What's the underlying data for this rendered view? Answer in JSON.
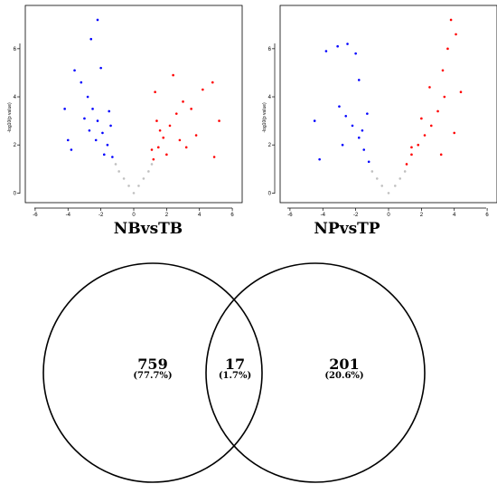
{
  "chart_data": [
    {
      "type": "scatter",
      "title": "NBvsTB",
      "ylabel": "-log10(p value)",
      "xlim": [
        -6.6,
        6.6
      ],
      "ylim": [
        -0.4,
        7.8
      ],
      "xticks": [
        "-6",
        "-4",
        "-2",
        "0",
        "2",
        "4",
        "6"
      ],
      "yticks": [
        "0",
        "2",
        "4",
        "6"
      ],
      "series": [
        {
          "color": "#c0c0c0",
          "points": [
            [
              0.0,
              0.0
            ],
            [
              -0.3,
              0.3
            ],
            [
              0.3,
              0.3
            ],
            [
              -0.6,
              0.6
            ],
            [
              0.6,
              0.6
            ],
            [
              -0.9,
              0.9
            ],
            [
              0.9,
              0.9
            ],
            [
              -1.1,
              1.2
            ],
            [
              1.1,
              1.2
            ]
          ]
        },
        {
          "color": "#0000ff",
          "points": [
            [
              -1.3,
              1.5
            ],
            [
              -1.6,
              2.0
            ],
            [
              -1.9,
              2.5
            ],
            [
              -2.2,
              3.0
            ],
            [
              -2.5,
              3.5
            ],
            [
              -2.8,
              4.0
            ],
            [
              -3.2,
              4.6
            ],
            [
              -3.6,
              5.1
            ],
            [
              -2.0,
              5.2
            ],
            [
              -2.6,
              6.4
            ],
            [
              -2.2,
              7.2
            ],
            [
              -4.0,
              2.2
            ],
            [
              -4.2,
              3.5
            ],
            [
              -3.8,
              1.8
            ],
            [
              -2.3,
              2.2
            ],
            [
              -1.4,
              2.8
            ],
            [
              -1.8,
              1.6
            ],
            [
              -3.0,
              3.1
            ],
            [
              -2.7,
              2.6
            ],
            [
              -1.5,
              3.4
            ]
          ]
        },
        {
          "color": "#ff0000",
          "points": [
            [
              1.2,
              1.4
            ],
            [
              1.5,
              1.9
            ],
            [
              1.8,
              2.3
            ],
            [
              2.2,
              2.8
            ],
            [
              2.6,
              3.3
            ],
            [
              3.0,
              3.8
            ],
            [
              1.3,
              4.2
            ],
            [
              1.6,
              2.6
            ],
            [
              2.0,
              1.6
            ],
            [
              2.8,
              2.2
            ],
            [
              3.5,
              3.5
            ],
            [
              4.2,
              4.3
            ],
            [
              4.8,
              4.6
            ],
            [
              5.2,
              3.0
            ],
            [
              4.9,
              1.5
            ],
            [
              3.8,
              2.4
            ],
            [
              1.4,
              3.0
            ],
            [
              2.4,
              4.9
            ],
            [
              1.1,
              1.8
            ],
            [
              3.2,
              1.9
            ]
          ]
        }
      ]
    },
    {
      "type": "scatter",
      "title": "NPvsTP",
      "ylabel": "-log10(p value)",
      "xlim": [
        -6.6,
        6.6
      ],
      "ylim": [
        -0.4,
        7.8
      ],
      "xticks": [
        "-6",
        "-4",
        "-2",
        "0",
        "2",
        "4",
        "6"
      ],
      "yticks": [
        "0",
        "2",
        "4",
        "6"
      ],
      "series": [
        {
          "color": "#c0c0c0",
          "points": [
            [
              0.0,
              0.0
            ],
            [
              -0.4,
              0.3
            ],
            [
              0.4,
              0.3
            ],
            [
              -0.7,
              0.6
            ],
            [
              0.7,
              0.6
            ],
            [
              -1.0,
              0.9
            ],
            [
              1.0,
              0.9
            ]
          ]
        },
        {
          "color": "#0000ff",
          "points": [
            [
              -1.2,
              1.3
            ],
            [
              -1.5,
              1.8
            ],
            [
              -1.8,
              2.3
            ],
            [
              -2.2,
              2.8
            ],
            [
              -2.6,
              3.2
            ],
            [
              -3.0,
              3.6
            ],
            [
              -2.0,
              5.8
            ],
            [
              -3.1,
              6.1
            ],
            [
              -2.5,
              6.2
            ],
            [
              -3.8,
              5.9
            ],
            [
              -1.8,
              4.7
            ],
            [
              -4.5,
              3.0
            ],
            [
              -4.2,
              1.4
            ],
            [
              -1.3,
              3.3
            ],
            [
              -2.8,
              2.0
            ],
            [
              -1.6,
              2.6
            ]
          ]
        },
        {
          "color": "#ff0000",
          "points": [
            [
              1.1,
              1.2
            ],
            [
              1.4,
              1.6
            ],
            [
              1.8,
              2.0
            ],
            [
              2.2,
              2.4
            ],
            [
              2.6,
              2.8
            ],
            [
              3.0,
              3.4
            ],
            [
              3.4,
              4.0
            ],
            [
              3.8,
              7.2
            ],
            [
              4.1,
              6.6
            ],
            [
              3.6,
              6.0
            ],
            [
              3.3,
              5.1
            ],
            [
              4.4,
              4.2
            ],
            [
              2.5,
              4.4
            ],
            [
              1.4,
              1.9
            ],
            [
              2.0,
              3.1
            ],
            [
              4.0,
              2.5
            ],
            [
              3.2,
              1.6
            ]
          ]
        }
      ]
    },
    {
      "type": "venn",
      "sets": [
        "NBvsTB",
        "NPvsTP"
      ],
      "regions": [
        {
          "count": "759",
          "percent": "(77.7%)"
        },
        {
          "count": "17",
          "percent": "(1.7%)"
        },
        {
          "count": "201",
          "percent": "(20.6%)"
        }
      ]
    }
  ]
}
